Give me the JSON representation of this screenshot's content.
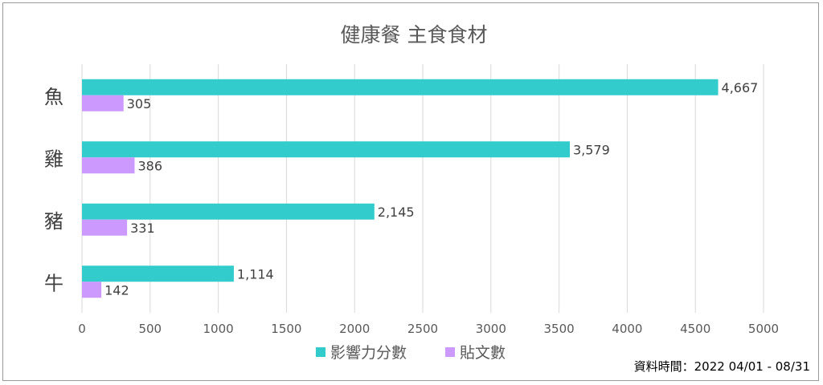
{
  "chart_data": {
    "type": "bar",
    "orientation": "horizontal",
    "title": "健康餐 主食食材",
    "categories": [
      "魚",
      "雞",
      "豬",
      "牛"
    ],
    "series": [
      {
        "name": "影響力分數",
        "values": [
          4667,
          3579,
          2145,
          1114
        ],
        "labels": [
          "4,667",
          "3,579",
          "2,145",
          "1,114"
        ],
        "color": "#33cccc"
      },
      {
        "name": "貼文數",
        "values": [
          305,
          386,
          331,
          142
        ],
        "labels": [
          "305",
          "386",
          "331",
          "142"
        ],
        "color": "#cc99ff"
      }
    ],
    "xlim": [
      0,
      5000
    ],
    "xticks": [
      0,
      500,
      1000,
      1500,
      2000,
      2500,
      3000,
      3500,
      4000,
      4500,
      5000
    ],
    "grid": true,
    "legend": "bottom"
  },
  "footnote": "資料時間：2022 04/01 - 08/31"
}
